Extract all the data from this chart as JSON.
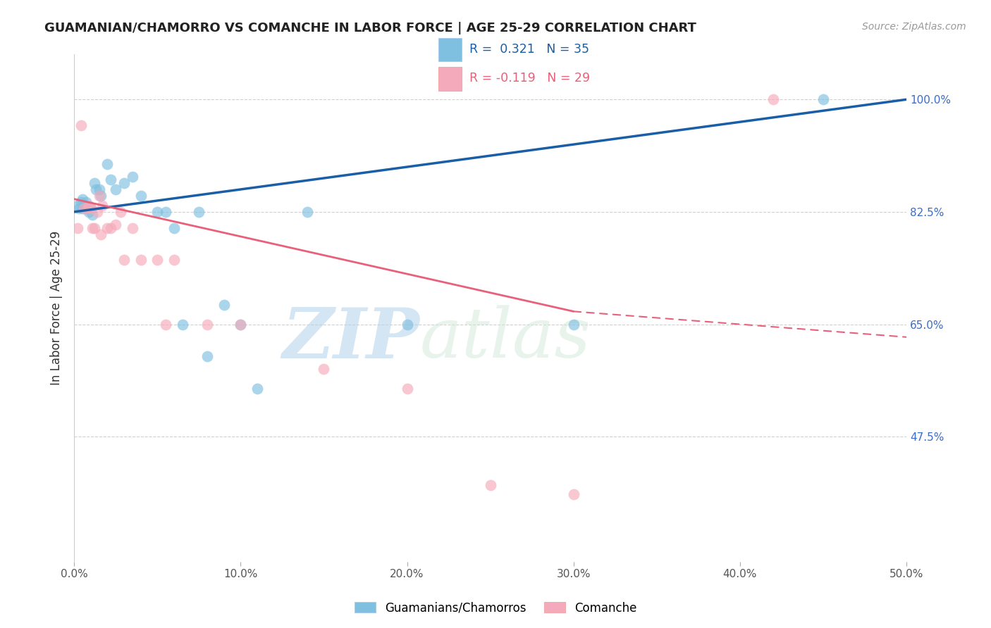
{
  "title": "GUAMANIAN/CHAMORRO VS COMANCHE IN LABOR FORCE | AGE 25-29 CORRELATION CHART",
  "source": "Source: ZipAtlas.com",
  "ylabel": "In Labor Force | Age 25-29",
  "xlim": [
    0.0,
    50.0
  ],
  "ylim": [
    28.0,
    107.0
  ],
  "yticks": [
    100.0,
    82.5,
    65.0,
    47.5
  ],
  "xticks": [
    0.0,
    10.0,
    20.0,
    30.0,
    40.0,
    50.0
  ],
  "r_blue": 0.321,
  "n_blue": 35,
  "r_pink": -0.119,
  "n_pink": 29,
  "watermark_zip": "ZIP",
  "watermark_atlas": "atlas",
  "blue_color": "#7fbfdf",
  "pink_color": "#f5aabb",
  "trend_blue": "#1a5ea8",
  "trend_pink": "#e8607a",
  "blue_scatter": [
    [
      0.2,
      83.5
    ],
    [
      0.3,
      83.0
    ],
    [
      0.4,
      84.0
    ],
    [
      0.5,
      84.5
    ],
    [
      0.5,
      83.0
    ],
    [
      0.6,
      83.5
    ],
    [
      0.7,
      83.0
    ],
    [
      0.7,
      84.0
    ],
    [
      0.8,
      83.0
    ],
    [
      0.9,
      82.5
    ],
    [
      1.0,
      83.0
    ],
    [
      1.1,
      82.0
    ],
    [
      1.2,
      87.0
    ],
    [
      1.3,
      86.0
    ],
    [
      1.5,
      86.0
    ],
    [
      1.6,
      85.0
    ],
    [
      2.0,
      90.0
    ],
    [
      2.2,
      87.5
    ],
    [
      2.5,
      86.0
    ],
    [
      3.0,
      87.0
    ],
    [
      3.5,
      88.0
    ],
    [
      4.0,
      85.0
    ],
    [
      5.0,
      82.5
    ],
    [
      5.5,
      82.5
    ],
    [
      6.0,
      80.0
    ],
    [
      6.5,
      65.0
    ],
    [
      7.5,
      82.5
    ],
    [
      8.0,
      60.0
    ],
    [
      9.0,
      68.0
    ],
    [
      10.0,
      65.0
    ],
    [
      11.0,
      55.0
    ],
    [
      14.0,
      82.5
    ],
    [
      20.0,
      65.0
    ],
    [
      30.0,
      65.0
    ],
    [
      45.0,
      100.0
    ]
  ],
  "pink_scatter": [
    [
      0.2,
      80.0
    ],
    [
      0.4,
      96.0
    ],
    [
      0.6,
      83.0
    ],
    [
      0.8,
      83.0
    ],
    [
      0.9,
      83.5
    ],
    [
      1.0,
      83.0
    ],
    [
      1.1,
      80.0
    ],
    [
      1.2,
      80.0
    ],
    [
      1.4,
      82.5
    ],
    [
      1.5,
      85.0
    ],
    [
      1.6,
      79.0
    ],
    [
      1.7,
      83.5
    ],
    [
      2.0,
      80.0
    ],
    [
      2.2,
      80.0
    ],
    [
      2.5,
      80.5
    ],
    [
      2.8,
      82.5
    ],
    [
      3.0,
      75.0
    ],
    [
      3.5,
      80.0
    ],
    [
      4.0,
      75.0
    ],
    [
      5.0,
      75.0
    ],
    [
      5.5,
      65.0
    ],
    [
      6.0,
      75.0
    ],
    [
      8.0,
      65.0
    ],
    [
      10.0,
      65.0
    ],
    [
      15.0,
      58.0
    ],
    [
      20.0,
      55.0
    ],
    [
      25.0,
      40.0
    ],
    [
      30.0,
      38.5
    ],
    [
      42.0,
      100.0
    ]
  ],
  "blue_trendline": [
    0.0,
    82.5,
    50.0,
    100.0
  ],
  "pink_trendline_solid": [
    0.0,
    84.5,
    30.0,
    67.0
  ],
  "pink_trendline_dash": [
    30.0,
    67.0,
    50.0,
    63.0
  ]
}
